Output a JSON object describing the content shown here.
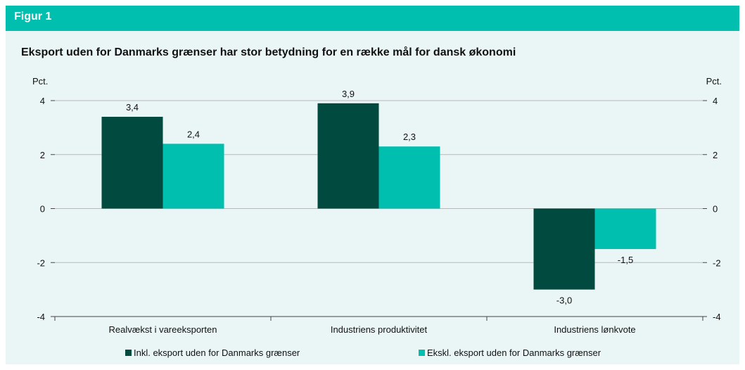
{
  "figure": {
    "label": "Figur 1"
  },
  "chart_data": {
    "type": "bar",
    "title": "Eksport uden for Danmarks grænser har stor betydning for en række mål for dansk økonomi",
    "ylabel_left": "Pct.",
    "ylabel_right": "Pct.",
    "ylim": [
      -4,
      4
    ],
    "yticks": [
      4,
      2,
      0,
      -2,
      -4
    ],
    "grid": true,
    "categories": [
      "Realvækst i vareeksporten",
      "Industriens produktivitet",
      "Industriens lønkvote"
    ],
    "series": [
      {
        "name": "Inkl. eksport uden for Danmarks grænser",
        "color": "#004a40",
        "values": [
          3.4,
          3.9,
          -3.0
        ],
        "labels": [
          "3,4",
          "3,9",
          "-3,0"
        ]
      },
      {
        "name": "Ekskl. eksport uden for Danmarks grænser",
        "color": "#00bfae",
        "values": [
          2.4,
          2.3,
          -1.5
        ],
        "labels": [
          "2,4",
          "2,3",
          "-1,5"
        ]
      }
    ],
    "legend_position": "bottom"
  }
}
